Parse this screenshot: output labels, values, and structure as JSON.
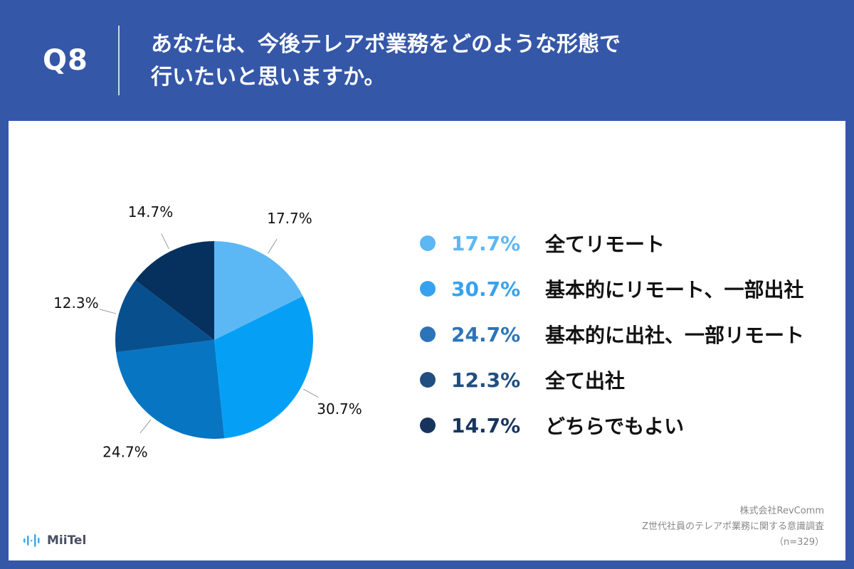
{
  "question": {
    "number": "Q8",
    "line1": "あなたは、今後テレアポ業務をどのような形態で",
    "line2": "行いたいと思いますか。"
  },
  "chart_data": {
    "type": "pie",
    "categories": [
      "全てリモート",
      "基本的にリモート、一部出社",
      "基本的に出社、一部リモート",
      "全て出社",
      "どちらでもよい"
    ],
    "values": [
      17.7,
      30.7,
      24.7,
      12.3,
      14.7
    ],
    "value_labels": [
      "17.7%",
      "30.7%",
      "24.7%",
      "12.3%",
      "14.7%"
    ],
    "colors": [
      "#5cb8f5",
      "#05a0f5",
      "#0775c2",
      "#084f8e",
      "#06315f"
    ],
    "legend_colors": [
      "#5cb8f5",
      "#35a2ef",
      "#2d73b9",
      "#214e81",
      "#18345e"
    ],
    "legend_position": "right",
    "start_angle": "12 o'clock",
    "direction": "clockwise"
  },
  "source": {
    "company": "株式会社RevComm",
    "survey": "Z世代社員のテレアポ業務に関する意識調査",
    "sample": "（n=329）"
  },
  "brand": {
    "name": "MiiTel",
    "color": "#3aa9ea"
  },
  "colors": {
    "header_bg": "#3557a8",
    "panel_bg": "#ffffff"
  }
}
